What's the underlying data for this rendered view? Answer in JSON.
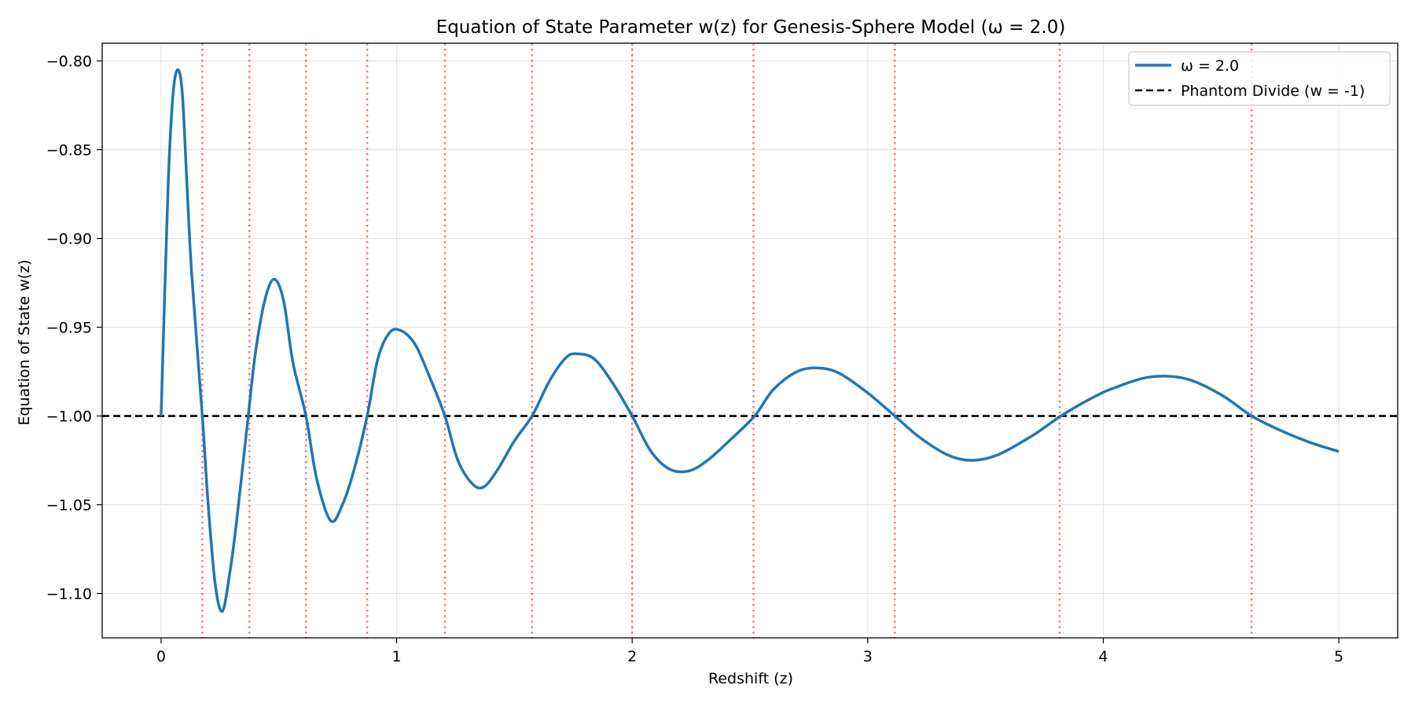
{
  "chart_data": {
    "type": "line",
    "title": "Equation of State Parameter w(z) for Genesis-Sphere Model (ω = 2.0)",
    "xlabel": "Redshift (z)",
    "ylabel": "Equation of State w(z)",
    "xlim": [
      -0.25,
      5.25
    ],
    "ylim": [
      -1.125,
      -0.79
    ],
    "x_ticks": [
      0,
      1,
      2,
      3,
      4,
      5
    ],
    "x_tick_labels": [
      "0",
      "1",
      "2",
      "3",
      "4",
      "5"
    ],
    "y_ticks": [
      -0.8,
      -0.85,
      -0.9,
      -0.95,
      -1.0,
      -1.05,
      -1.1
    ],
    "y_tick_labels": [
      "−0.80",
      "−0.85",
      "−0.90",
      "−0.95",
      "−1.00",
      "−1.05",
      "−1.10"
    ],
    "grid": true,
    "legend_position": "top-right",
    "series": [
      {
        "name": "ω = 2.0",
        "color": "#1f77b4",
        "style": "solid",
        "x": [
          0.0,
          0.03,
          0.05,
          0.07,
          0.09,
          0.11,
          0.13,
          0.175,
          0.2,
          0.23,
          0.26,
          0.29,
          0.32,
          0.37,
          0.4,
          0.44,
          0.48,
          0.52,
          0.56,
          0.615,
          0.66,
          0.72,
          0.77,
          0.82,
          0.875,
          0.92,
          0.97,
          1.02,
          1.08,
          1.14,
          1.205,
          1.26,
          1.32,
          1.37,
          1.43,
          1.5,
          1.575,
          1.65,
          1.72,
          1.77,
          1.84,
          1.92,
          2.0,
          2.08,
          2.16,
          2.24,
          2.32,
          2.42,
          2.52,
          2.6,
          2.7,
          2.79,
          2.88,
          3.0,
          3.115,
          3.22,
          3.34,
          3.44,
          3.55,
          3.7,
          3.82,
          3.95,
          4.05,
          4.2,
          4.35,
          4.5,
          4.63,
          4.75,
          4.88,
          5.0
        ],
        "y": [
          -1.0,
          -0.87,
          -0.82,
          -0.805,
          -0.818,
          -0.87,
          -0.92,
          -1.0,
          -1.05,
          -1.095,
          -1.11,
          -1.09,
          -1.06,
          -1.0,
          -0.965,
          -0.935,
          -0.923,
          -0.935,
          -0.97,
          -1.0,
          -1.035,
          -1.059,
          -1.05,
          -1.03,
          -1.0,
          -0.968,
          -0.953,
          -0.952,
          -0.96,
          -0.978,
          -1.0,
          -1.025,
          -1.038,
          -1.04,
          -1.03,
          -1.014,
          -1.0,
          -0.98,
          -0.967,
          -0.965,
          -0.968,
          -0.982,
          -1.0,
          -1.02,
          -1.03,
          -1.031,
          -1.025,
          -1.013,
          -1.0,
          -0.985,
          -0.975,
          -0.973,
          -0.976,
          -0.987,
          -1.0,
          -1.012,
          -1.022,
          -1.025,
          -1.022,
          -1.011,
          -1.0,
          -0.99,
          -0.984,
          -0.978,
          -0.979,
          -0.988,
          -1.0,
          -1.008,
          -1.015,
          -1.02
        ]
      },
      {
        "name": "Phantom Divide (w = -1)",
        "color": "#000000",
        "style": "dashed",
        "y_constant": -1.0
      }
    ],
    "crossing_lines": {
      "color": "#ff0000",
      "style": "dotted",
      "x": [
        0.175,
        0.375,
        0.615,
        0.875,
        1.205,
        1.575,
        2.0,
        2.515,
        3.115,
        3.815,
        4.63
      ]
    }
  }
}
